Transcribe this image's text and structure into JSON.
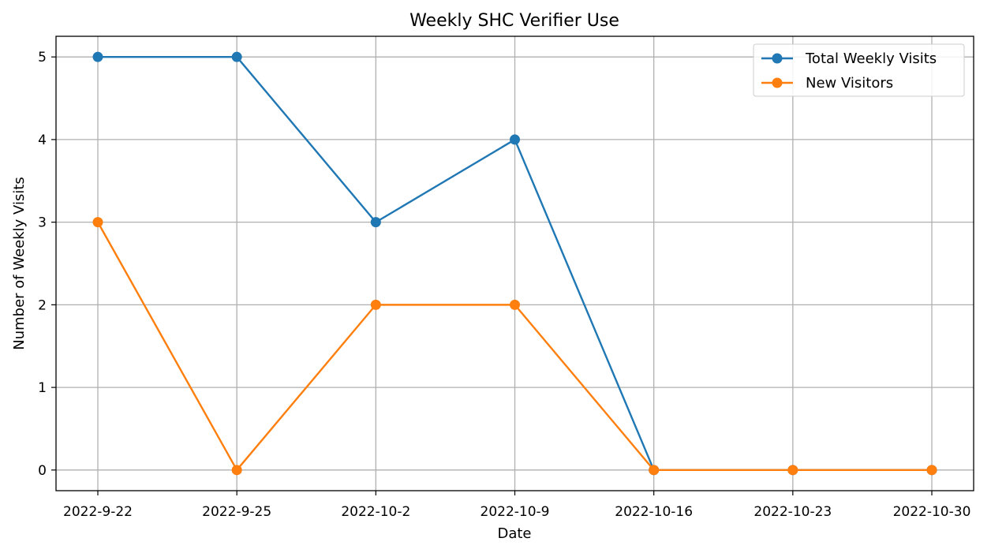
{
  "chart_data": {
    "type": "line",
    "title": "Weekly SHC Verifier Use",
    "xlabel": "Date",
    "ylabel": "Number of Weekly Visits",
    "categories": [
      "2022-9-22",
      "2022-9-25",
      "2022-10-2",
      "2022-10-9",
      "2022-10-16",
      "2022-10-23",
      "2022-10-30"
    ],
    "yticks": [
      "0",
      "1",
      "2",
      "3",
      "4",
      "5"
    ],
    "ylim": [
      -0.25,
      5.25
    ],
    "grid": true,
    "legend_position": "top-right",
    "series": [
      {
        "name": "Total Weekly Visits",
        "color": "#1f77b4",
        "values": [
          5,
          5,
          3,
          4,
          0,
          0,
          0
        ]
      },
      {
        "name": "New Visitors",
        "color": "#ff7f0e",
        "values": [
          3,
          0,
          2,
          2,
          0,
          0,
          0
        ]
      }
    ]
  }
}
